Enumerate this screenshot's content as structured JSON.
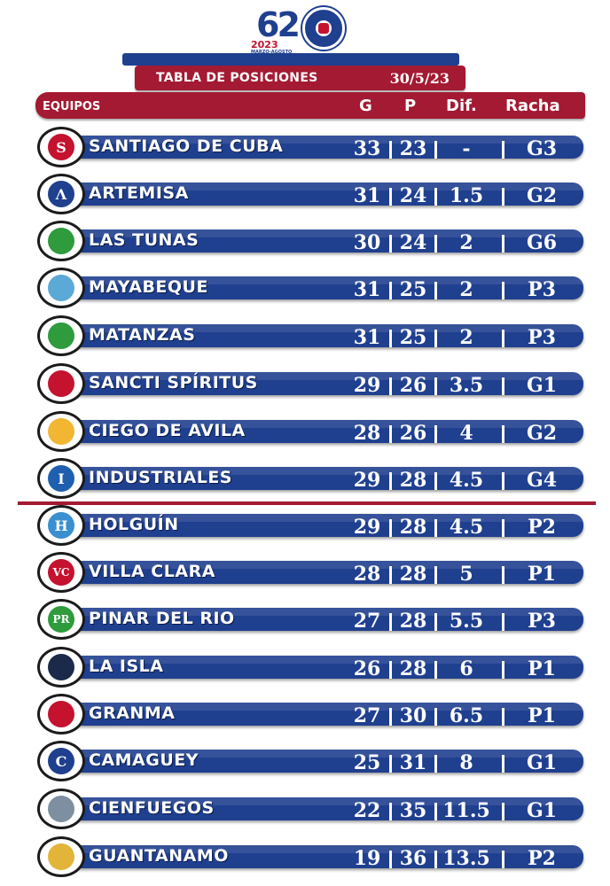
{
  "header": {
    "edition_number": "62",
    "year": "2023",
    "season_dates": "MARZO-AGOSTO",
    "title": "TABLA DE POSICIONES",
    "date": "30/5/23"
  },
  "columns": {
    "team": "EQUIPOS",
    "won": "G",
    "lost": "P",
    "diff": "Dif.",
    "streak": "Racha"
  },
  "teams": [
    {
      "name": "SANTIAGO DE CUBA",
      "g": "33",
      "p": "23",
      "dif": "-",
      "racha": "G3",
      "badge_color": "#c4122f",
      "badge_letter": "S"
    },
    {
      "name": "ARTEMISA",
      "g": "31",
      "p": "24",
      "dif": "1.5",
      "racha": "G2",
      "badge_color": "#1f3f8f",
      "badge_letter": "Λ"
    },
    {
      "name": "LAS TUNAS",
      "g": "30",
      "p": "24",
      "dif": "2",
      "racha": "G6",
      "badge_color": "#2e9b3c",
      "badge_letter": ""
    },
    {
      "name": "MAYABEQUE",
      "g": "31",
      "p": "25",
      "dif": "2",
      "racha": "P3",
      "badge_color": "#5aa9d6",
      "badge_letter": ""
    },
    {
      "name": "MATANZAS",
      "g": "31",
      "p": "25",
      "dif": "2",
      "racha": "P3",
      "badge_color": "#2e9b3c",
      "badge_letter": ""
    },
    {
      "name": "SANCTI SPÍRITUS",
      "g": "29",
      "p": "26",
      "dif": "3.5",
      "racha": "G1",
      "badge_color": "#c4122f",
      "badge_letter": ""
    },
    {
      "name": "CIEGO DE AVILA",
      "g": "28",
      "p": "26",
      "dif": "4",
      "racha": "G2",
      "badge_color": "#f2b632",
      "badge_letter": ""
    },
    {
      "name": "INDUSTRIALES",
      "g": "29",
      "p": "28",
      "dif": "4.5",
      "racha": "G4",
      "badge_color": "#1f5fb0",
      "badge_letter": "I"
    },
    {
      "name": "HOLGUÍN",
      "g": "29",
      "p": "28",
      "dif": "4.5",
      "racha": "P2",
      "badge_color": "#3a8fd1",
      "badge_letter": "H"
    },
    {
      "name": "VILLA CLARA",
      "g": "28",
      "p": "28",
      "dif": "5",
      "racha": "P1",
      "badge_color": "#c4122f",
      "badge_letter": "VC"
    },
    {
      "name": "PINAR DEL RIO",
      "g": "27",
      "p": "28",
      "dif": "5.5",
      "racha": "P3",
      "badge_color": "#2e9b3c",
      "badge_letter": "PR"
    },
    {
      "name": "LA ISLA",
      "g": "26",
      "p": "28",
      "dif": "6",
      "racha": "P1",
      "badge_color": "#1b2a4a",
      "badge_letter": ""
    },
    {
      "name": "GRANMA",
      "g": "27",
      "p": "30",
      "dif": "6.5",
      "racha": "P1",
      "badge_color": "#c4122f",
      "badge_letter": ""
    },
    {
      "name": "CAMAGUEY",
      "g": "25",
      "p": "31",
      "dif": "8",
      "racha": "G1",
      "badge_color": "#1f3f8f",
      "badge_letter": "C"
    },
    {
      "name": "CIENFUEGOS",
      "g": "22",
      "p": "35",
      "dif": "11.5",
      "racha": "G1",
      "badge_color": "#7d8fa0",
      "badge_letter": ""
    },
    {
      "name": "GUANTANAMO",
      "g": "19",
      "p": "36",
      "dif": "13.5",
      "racha": "P2",
      "badge_color": "#e2b43a",
      "badge_letter": ""
    }
  ]
}
